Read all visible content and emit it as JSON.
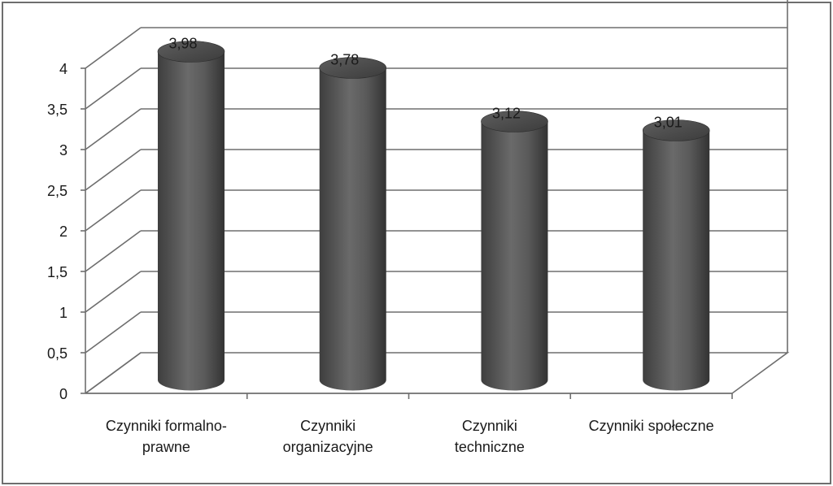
{
  "chart_data": {
    "type": "bar",
    "style": "3d-cylinder",
    "categories": [
      [
        "Czynniki formalno-",
        "prawne"
      ],
      [
        "Czynniki",
        "organizacyjne"
      ],
      [
        "Czynniki",
        "techniczne"
      ],
      [
        "Czynniki społeczne"
      ]
    ],
    "values": [
      3.98,
      3.78,
      3.12,
      3.01
    ],
    "data_labels": [
      "3,98",
      "3,78",
      "3,12",
      "3,01"
    ],
    "yticks": [
      "0",
      "0,5",
      "1",
      "1,5",
      "2",
      "2,5",
      "3",
      "3,5",
      "4"
    ],
    "ylim": [
      0,
      4
    ],
    "ystep": 0.5,
    "grid": true,
    "colors": {
      "bar": "#5a5a5a",
      "bar_dark": "#3a3a3a",
      "bar_light": "#8a8a8a",
      "grid": "#6e6e6e",
      "frame": "#6e6e6e"
    }
  }
}
